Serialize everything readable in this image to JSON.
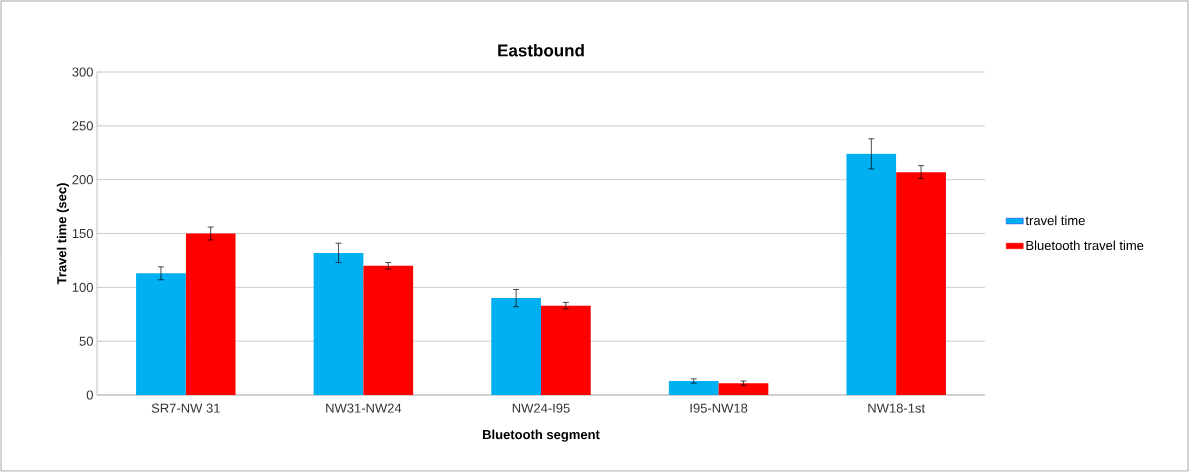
{
  "chart_data": {
    "type": "bar",
    "title": "Eastbound",
    "xlabel": "Bluetooth segment",
    "ylabel": "Travel time (sec)",
    "categories": [
      "SR7-NW 31",
      "NW31-NW24",
      "NW24-I95",
      "I95-NW18",
      "NW18-1st"
    ],
    "series": [
      {
        "name": "travel time",
        "color": "#00b0f0",
        "values": [
          113,
          132,
          90,
          13,
          224
        ],
        "errors": [
          6,
          9,
          8,
          2,
          14
        ]
      },
      {
        "name": "Bluetooth travel time",
        "color": "#ff0000",
        "values": [
          150,
          120,
          83,
          11,
          207
        ],
        "errors": [
          6,
          3,
          3,
          2,
          6
        ]
      }
    ],
    "ylim": [
      0,
      300
    ],
    "yticks": [
      0,
      50,
      100,
      150,
      200,
      250,
      300
    ],
    "grid": "y",
    "legend": "right"
  }
}
